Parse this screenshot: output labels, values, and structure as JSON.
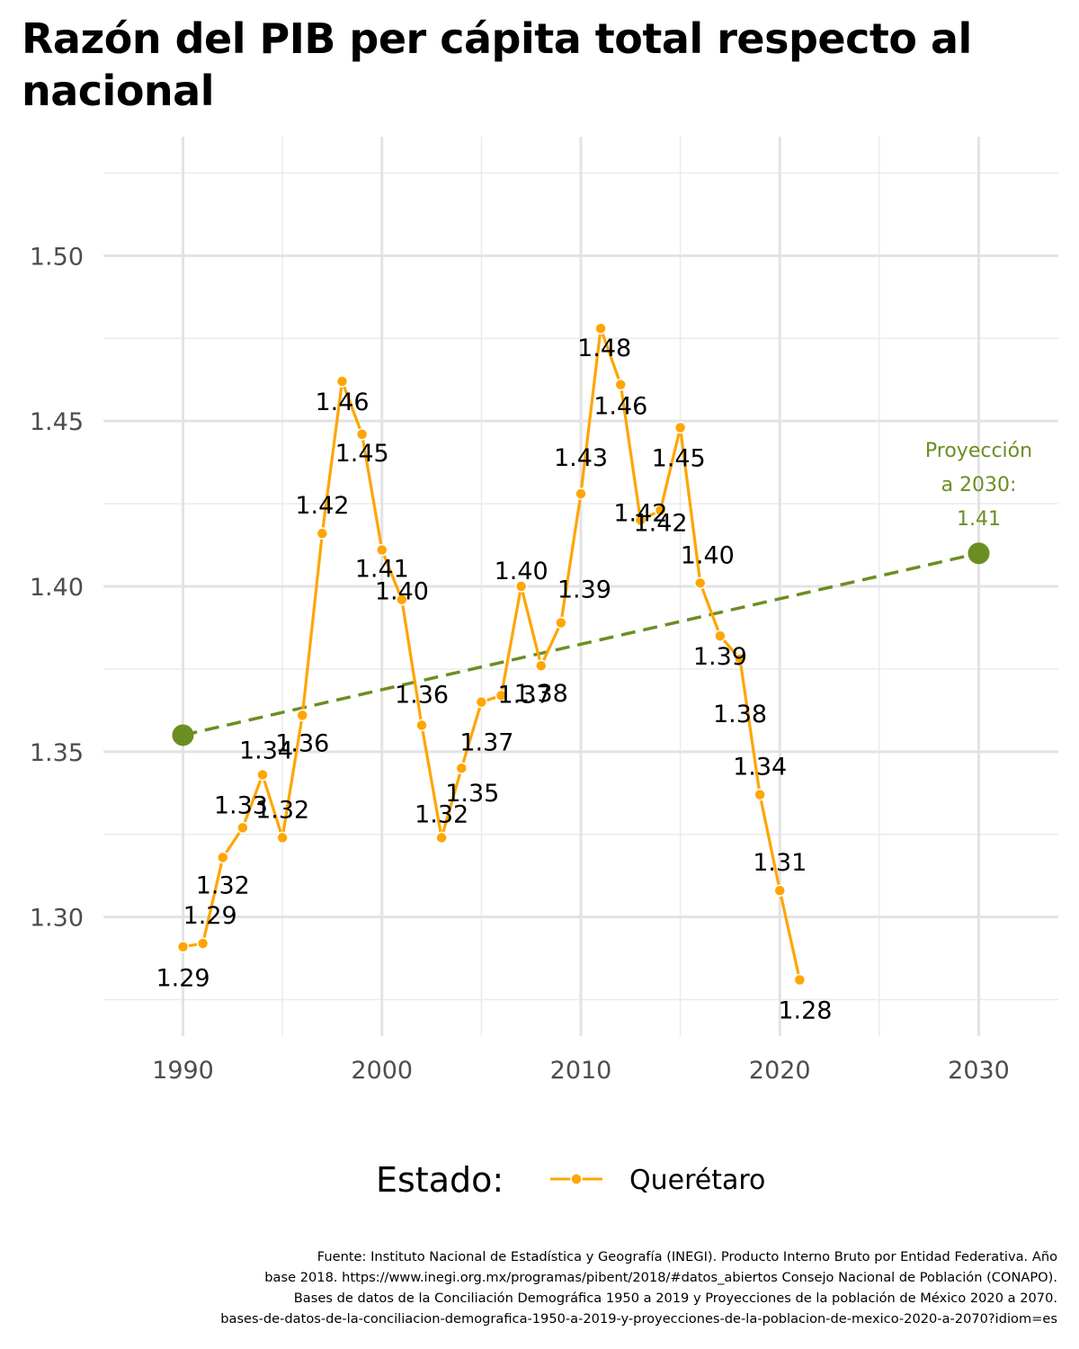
{
  "title": "Razón del PIB per cápita total respecto al nacional",
  "chart_data": {
    "type": "line",
    "title": "Razón del PIB per cápita total respecto al nacional",
    "xlabel": "",
    "ylabel": "",
    "xlim": [
      1986,
      2034
    ],
    "ylim": [
      1.264,
      1.536
    ],
    "x_ticks": [
      1990,
      2000,
      2010,
      2020,
      2030
    ],
    "y_ticks": [
      1.3,
      1.35,
      1.4,
      1.45,
      1.5
    ],
    "x_tick_labels": [
      "1990",
      "2000",
      "2010",
      "2020",
      "2030"
    ],
    "y_tick_labels": [
      "1.30",
      "1.35",
      "1.40",
      "1.45",
      "1.50"
    ],
    "grid": true,
    "legend_position": "bottom",
    "legend_title": "Estado:",
    "series": [
      {
        "name": "Querétaro",
        "color": "#ffa500",
        "x": [
          1990,
          1991,
          1992,
          1993,
          1994,
          1995,
          1996,
          1997,
          1998,
          1999,
          2000,
          2001,
          2002,
          2003,
          2004,
          2005,
          2006,
          2007,
          2008,
          2009,
          2010,
          2011,
          2012,
          2013,
          2014,
          2015,
          2016,
          2017,
          2018,
          2019,
          2020,
          2021
        ],
        "values": [
          1.291,
          1.292,
          1.318,
          1.327,
          1.343,
          1.324,
          1.361,
          1.416,
          1.462,
          1.446,
          1.411,
          1.396,
          1.358,
          1.324,
          1.345,
          1.365,
          1.367,
          1.4,
          1.376,
          1.389,
          1.428,
          1.478,
          1.461,
          1.42,
          1.423,
          1.448,
          1.401,
          1.385,
          1.378,
          1.337,
          1.308,
          1.281
        ],
        "data_labels": [
          "1.29",
          "1.29",
          "1.32",
          "1.33",
          "1.34",
          "1.32",
          "1.36",
          "1.42",
          "1.46",
          "1.45",
          "1.41",
          "1.40",
          "1.36",
          "1.32",
          "1.35",
          "1.37",
          "1.37",
          "1.40",
          "1.38",
          "1.39",
          "1.43",
          "1.48",
          "1.46",
          "1.42",
          "1.42",
          "1.45",
          "1.40",
          "1.39",
          "1.38",
          "1.34",
          "1.31",
          "1.28"
        ]
      },
      {
        "name": "Proyección",
        "color": "#6b8e23",
        "style": "dashed",
        "x": [
          1990,
          2030
        ],
        "values": [
          1.355,
          1.41
        ]
      }
    ],
    "annotations": [
      {
        "lines": [
          "Proyección",
          "a 2030:",
          "1.41"
        ],
        "x": 2030,
        "y": 1.41,
        "color": "#6b8e23"
      }
    ]
  },
  "caption_lines": [
    "Fuente: Instituto Nacional de Estadística y Geografía (INEGI). Producto Interno Bruto por Entidad Federativa. Año",
    "base 2018. https://www.inegi.org.mx/programas/pibent/2018/#datos_abiertos Consejo Nacional de Población (CONAPO).",
    "Bases de datos de la Conciliación Demográfica 1950 a 2019 y Proyecciones de la población de México 2020 a 2070.",
    "bases-de-datos-de-la-conciliacion-demografica-1950-a-2019-y-proyecciones-de-la-poblacion-de-mexico-2020-a-2070?idiom=es"
  ]
}
